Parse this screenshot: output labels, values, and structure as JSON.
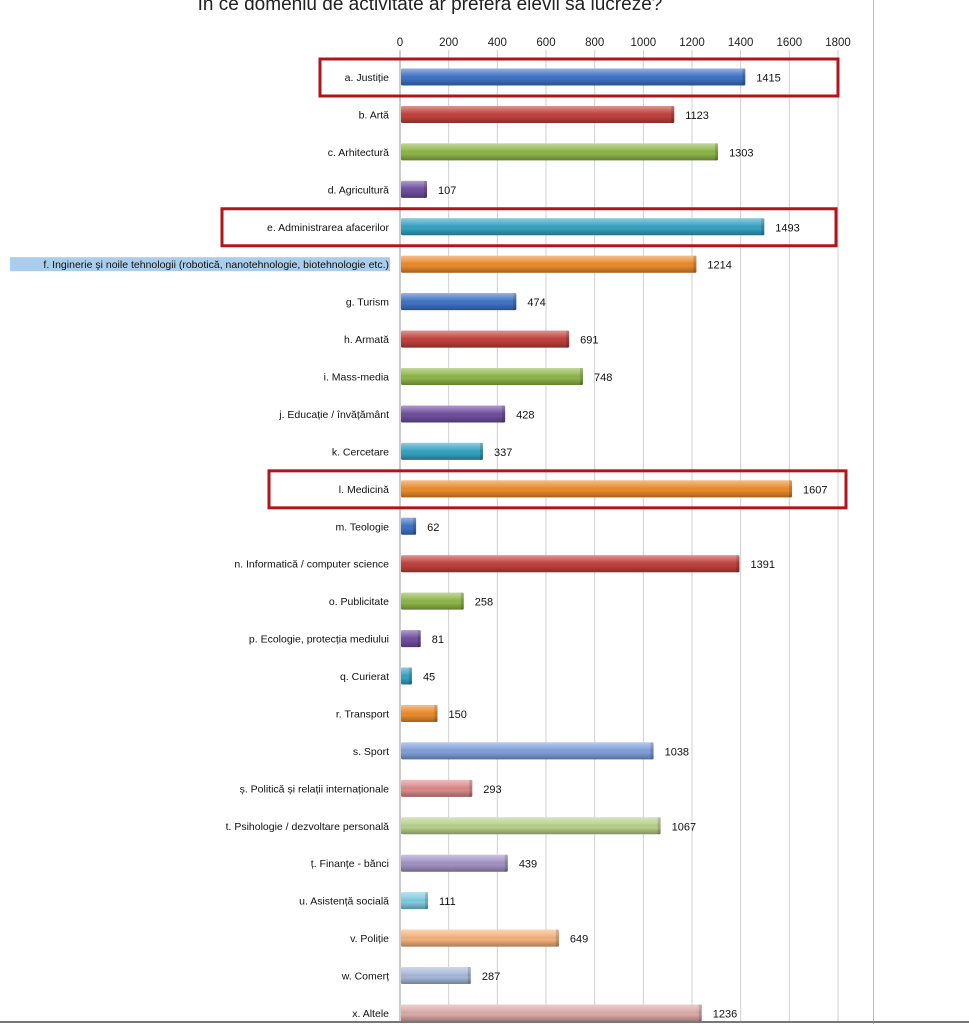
{
  "chart_data": {
    "type": "bar",
    "orientation": "horizontal",
    "title": "În ce domeniu de activitate ar prefera elevii să lucreze?",
    "xlim": [
      0,
      1800
    ],
    "x_ticks": [
      0,
      200,
      400,
      600,
      800,
      1000,
      1200,
      1400,
      1600,
      1800
    ],
    "grid": true,
    "categories": [
      "a. Justiție",
      "b. Artă",
      "c. Arhitectură",
      "d. Agricultură",
      "e. Administrarea afacerilor",
      "f. Inginerie şi noile tehnologii (robotică, nanotehnologie, biotehnologie etc.)",
      "g. Turism",
      "h. Armată",
      "i. Mass-media",
      "j. Educație / învățământ",
      "k. Cercetare",
      "l. Medicină",
      "m. Teologie",
      "n. Informatică / computer science",
      "o. Publicitate",
      "p. Ecologie, protecția mediului",
      "q. Curierat",
      "r. Transport",
      "s. Sport",
      "ș. Politică și relații internaționale",
      "t. Psihologie / dezvoltare personală",
      "ț. Finanțe - bănci",
      "u. Asistență socială",
      "v. Poliție",
      "w. Comerț",
      "x. Altele"
    ],
    "values": [
      1415,
      1123,
      1303,
      107,
      1493,
      1214,
      474,
      691,
      748,
      428,
      337,
      1607,
      62,
      1391,
      258,
      81,
      45,
      150,
      1038,
      293,
      1067,
      439,
      111,
      649,
      287,
      1236
    ],
    "bar_colors": [
      "#3f72c4",
      "#c0413d",
      "#8db648",
      "#6f4f9e",
      "#35a2c0",
      "#ea8a2c",
      "#3f72c4",
      "#c0413d",
      "#8db648",
      "#6f4f9e",
      "#35a2c0",
      "#ea8a2c",
      "#3f72c4",
      "#c0413d",
      "#8db648",
      "#6f4f9e",
      "#35a2c0",
      "#ea8a2c",
      "#7f9ed8",
      "#da8a88",
      "#b6d089",
      "#a291c4",
      "#7fcade",
      "#f2b07a",
      "#a5b7d8",
      "#d9a9a7"
    ],
    "highlighted_categories": [
      "a. Justiție",
      "e. Administrarea afacerilor",
      "l. Medicină"
    ],
    "highlight_color": "#b3141b",
    "selected_label_highlight_color": "#a9cdea"
  }
}
